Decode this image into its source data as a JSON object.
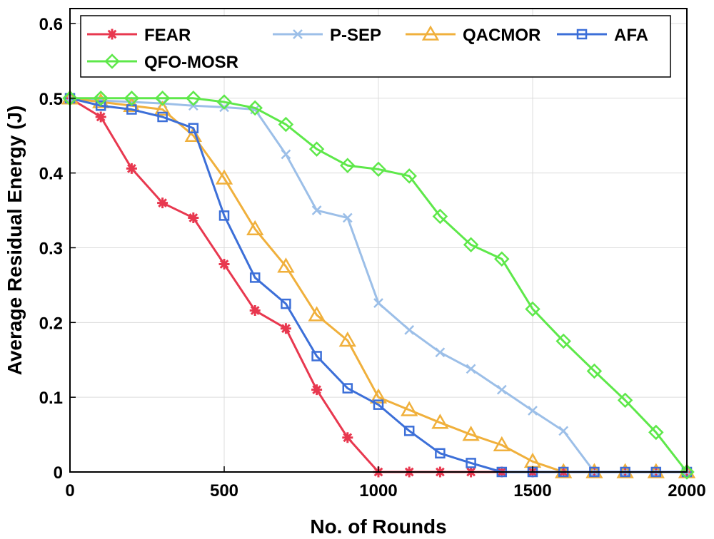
{
  "chart_data": {
    "type": "line",
    "title": "",
    "xlabel": "No. of Rounds",
    "ylabel": "Average Residual Energy (J)",
    "xlim": [
      0,
      2000
    ],
    "ylim": [
      0,
      0.62
    ],
    "xticks": [
      0,
      500,
      1000,
      1500,
      2000
    ],
    "xtick_labels": [
      "0",
      "500",
      "1000",
      "1500",
      "2000"
    ],
    "yticks": [
      0,
      0.1,
      0.2,
      0.3,
      0.4,
      0.5,
      0.6
    ],
    "ytick_labels": [
      "0",
      "0.1",
      "0.2",
      "0.3",
      "0.4",
      "0.5",
      "0.6"
    ],
    "grid": true,
    "legend_position": "top",
    "series": [
      {
        "name": "FEAR",
        "color": "#e8384f",
        "marker": "asterisk",
        "x": [
          0,
          100,
          200,
          300,
          400,
          500,
          600,
          700,
          800,
          900,
          1000,
          1100,
          1200,
          1300,
          1400,
          1500,
          1600,
          1700,
          1800,
          1900,
          2000
        ],
        "y": [
          0.5,
          0.475,
          0.406,
          0.36,
          0.34,
          0.278,
          0.216,
          0.192,
          0.11,
          0.046,
          0,
          0,
          0,
          0,
          0,
          0,
          0,
          0,
          0,
          0,
          0
        ]
      },
      {
        "name": "P-SEP",
        "color": "#9cbfe8",
        "marker": "x",
        "x": [
          0,
          100,
          200,
          300,
          400,
          500,
          600,
          700,
          800,
          900,
          1000,
          1100,
          1200,
          1300,
          1400,
          1500,
          1600,
          1700,
          1800,
          1900,
          2000
        ],
        "y": [
          0.5,
          0.497,
          0.495,
          0.493,
          0.49,
          0.488,
          0.485,
          0.425,
          0.35,
          0.34,
          0.226,
          0.19,
          0.16,
          0.138,
          0.11,
          0.082,
          0.055,
          0,
          0,
          0,
          0
        ]
      },
      {
        "name": "QACMOR",
        "color": "#f0b03c",
        "marker": "triangle",
        "x": [
          0,
          100,
          200,
          300,
          400,
          500,
          600,
          700,
          800,
          900,
          1000,
          1100,
          1200,
          1300,
          1400,
          1500,
          1600,
          1700,
          1800,
          1900,
          2000
        ],
        "y": [
          0.5,
          0.495,
          0.49,
          0.485,
          0.45,
          0.393,
          0.325,
          0.275,
          0.21,
          0.176,
          0.1,
          0.083,
          0.066,
          0.05,
          0.036,
          0.014,
          0,
          0,
          0,
          0,
          0
        ]
      },
      {
        "name": "AFA",
        "color": "#3c6fd8",
        "marker": "square",
        "x": [
          0,
          100,
          200,
          300,
          400,
          500,
          600,
          700,
          800,
          900,
          1000,
          1100,
          1200,
          1300,
          1400,
          1500,
          1600,
          1700,
          1800,
          1900,
          2000
        ],
        "y": [
          0.5,
          0.49,
          0.485,
          0.475,
          0.46,
          0.343,
          0.26,
          0.225,
          0.155,
          0.112,
          0.09,
          0.055,
          0.025,
          0.012,
          0,
          0,
          0,
          0,
          0,
          0,
          0
        ]
      },
      {
        "name": "QFO-MOSR",
        "color": "#5ee84a",
        "marker": "diamond",
        "x": [
          0,
          100,
          200,
          300,
          400,
          500,
          600,
          700,
          800,
          900,
          1000,
          1100,
          1200,
          1300,
          1400,
          1500,
          1600,
          1700,
          1800,
          1900,
          2000
        ],
        "y": [
          0.5,
          0.5,
          0.5,
          0.5,
          0.5,
          0.495,
          0.487,
          0.465,
          0.432,
          0.41,
          0.405,
          0.396,
          0.342,
          0.304,
          0.285,
          0.218,
          0.175,
          0.135,
          0.096,
          0.053,
          0
        ]
      }
    ]
  }
}
